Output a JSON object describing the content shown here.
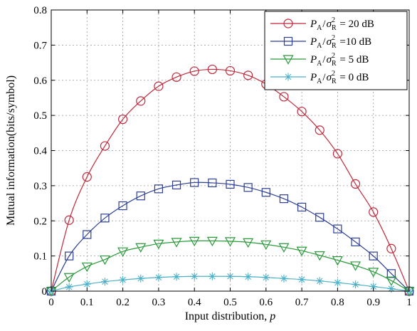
{
  "chart_data": {
    "type": "line",
    "xlabel": "Input distribution, p",
    "ylabel": "Mutual information(bits/symbol)",
    "xlim": [
      0,
      1
    ],
    "ylim": [
      0,
      0.8
    ],
    "xticks": [
      "0",
      "0.1",
      "0.2",
      "0.3",
      "0.4",
      "0.5",
      "0.6",
      "0.7",
      "0.8",
      "0.9",
      "1"
    ],
    "yticks": [
      "0",
      "0.1",
      "0.2",
      "0.3",
      "0.4",
      "0.5",
      "0.6",
      "0.7",
      "0.8"
    ],
    "grid": true,
    "legend_position": "top-right",
    "x": [
      0,
      0.05,
      0.1,
      0.15,
      0.2,
      0.25,
      0.3,
      0.35,
      0.4,
      0.45,
      0.5,
      0.55,
      0.6,
      0.65,
      0.7,
      0.75,
      0.8,
      0.85,
      0.9,
      0.95,
      1
    ],
    "series": [
      {
        "name": "P_A/σ_R^2 = 20 dB",
        "color": "#c0283a",
        "marker": "circle",
        "values": [
          0,
          0.202,
          0.325,
          0.413,
          0.489,
          0.541,
          0.583,
          0.609,
          0.626,
          0.631,
          0.627,
          0.614,
          0.589,
          0.553,
          0.511,
          0.458,
          0.391,
          0.305,
          0.225,
          0.121,
          0
        ]
      },
      {
        "name": "P_A/σ_R^2 =10 dB",
        "color": "#2e3f96",
        "marker": "square",
        "values": [
          0,
          0.1,
          0.161,
          0.208,
          0.243,
          0.271,
          0.291,
          0.302,
          0.309,
          0.308,
          0.304,
          0.295,
          0.281,
          0.263,
          0.239,
          0.21,
          0.177,
          0.14,
          0.1,
          0.05,
          0
        ]
      },
      {
        "name": "P_A/σ_R^2 = 5 dB",
        "color": "#2a9a3a",
        "marker": "triangle-down",
        "values": [
          0,
          0.04,
          0.07,
          0.09,
          0.113,
          0.125,
          0.135,
          0.14,
          0.143,
          0.143,
          0.142,
          0.139,
          0.133,
          0.125,
          0.115,
          0.102,
          0.088,
          0.073,
          0.055,
          0.03,
          0
        ]
      },
      {
        "name": "P_A/σ_R^2 = 0 dB",
        "color": "#4ab0c8",
        "marker": "asterisk",
        "values": [
          0,
          0.012,
          0.02,
          0.027,
          0.032,
          0.036,
          0.039,
          0.041,
          0.042,
          0.042,
          0.042,
          0.041,
          0.039,
          0.036,
          0.033,
          0.029,
          0.024,
          0.019,
          0.013,
          0.007,
          0
        ]
      }
    ],
    "legend": [
      {
        "pre": "P",
        "pre_sub": "A",
        "slash": "/",
        "sym": "σ",
        "sym_sub": "R",
        "sym_sup": "2",
        "rest": " = 20 dB"
      },
      {
        "pre": "P",
        "pre_sub": "A",
        "slash": "/",
        "sym": "σ",
        "sym_sub": "R",
        "sym_sup": "2",
        "rest": " =10 dB"
      },
      {
        "pre": "P",
        "pre_sub": "A",
        "slash": "/",
        "sym": "σ",
        "sym_sub": "R",
        "sym_sup": "2",
        "rest": " = 5 dB"
      },
      {
        "pre": "P",
        "pre_sub": "A",
        "slash": "/",
        "sym": "σ",
        "sym_sub": "R",
        "sym_sup": "2",
        "rest": " = 0 dB"
      }
    ]
  }
}
